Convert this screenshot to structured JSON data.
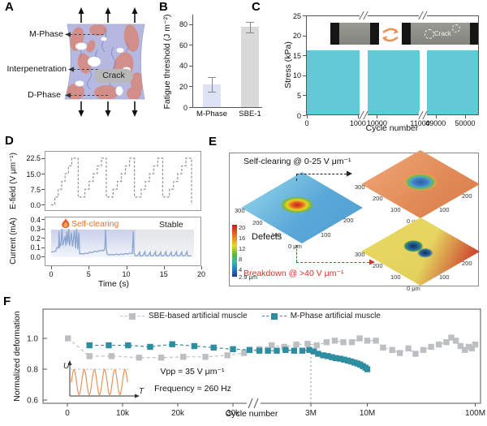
{
  "colors": {
    "cyan": "#62c9d6",
    "teal": "#2f8da2",
    "gray": "#bcc0c2",
    "orange": "#e8702f",
    "salmon": "#d28f8a",
    "lavender": "#b5b9e1",
    "red": "#d93025",
    "current_trace": "#8ba3cf",
    "efield_trace": "#8a8a7e"
  },
  "panel_a": {
    "label": "A",
    "m_phase": "M-Phase",
    "interpenetration": "Interpenetration",
    "d_phase": "D-Phase",
    "crack": "Crack"
  },
  "panel_b": {
    "label": "B",
    "ylabel": "Fatigue threshold (J m⁻²)",
    "chart_data": {
      "type": "bar",
      "categories": [
        "M-Phase",
        "SBE-1"
      ],
      "values": [
        22,
        77
      ],
      "errors": [
        7,
        5
      ],
      "yticks": [
        80,
        60,
        40,
        20,
        0
      ],
      "ylim": [
        0,
        89
      ],
      "bar_colors": [
        "#dde3f4",
        "#d9d9d9"
      ]
    }
  },
  "panel_c": {
    "label": "C",
    "ylabel": "Stress (kPa)",
    "xlabel": "Cycle number",
    "crack_label": "Crack",
    "chart_data": {
      "type": "area",
      "description": "cyclic tensile stress bands with two axis breaks",
      "amplitude_kpa": 16.3,
      "ylim": [
        0,
        25
      ],
      "yticks": [
        25,
        20,
        15,
        10,
        5,
        0
      ],
      "xticks": [
        {
          "label": "0",
          "f": 0.005
        },
        {
          "label": "1000",
          "f": 0.3
        },
        {
          "label": "10000",
          "f": 0.41
        },
        {
          "label": "11000",
          "f": 0.66
        },
        {
          "label": "49000",
          "f": 0.75
        },
        {
          "label": "50000",
          "f": 0.92
        }
      ],
      "segments": [
        [
          0.0,
          0.31
        ],
        [
          0.355,
          0.655
        ],
        [
          0.7,
          1.0
        ]
      ],
      "breaks_f": [
        0.333,
        0.678
      ]
    }
  },
  "panel_d": {
    "label": "D",
    "xlabel": "Time (s)",
    "xticks": [
      0,
      5,
      10,
      15,
      20
    ],
    "efield": {
      "ylabel": "E-field (V μm⁻¹)",
      "yticks": [
        "22.5",
        "15.0",
        "7.5",
        "0.0"
      ],
      "ylim": [
        -3,
        26
      ],
      "chart_data": {
        "type": "line",
        "style": "staircase-dashed",
        "steps": [
          [
            0,
            0
          ],
          [
            0.5,
            3.75
          ],
          [
            0.95,
            7.5
          ],
          [
            1.4,
            11.25
          ],
          [
            1.85,
            15
          ],
          [
            2.3,
            18.75
          ],
          [
            2.75,
            22.5
          ],
          [
            3.6,
            3.75
          ],
          [
            4.5,
            7.5
          ],
          [
            5.05,
            11.25
          ],
          [
            5.6,
            15
          ],
          [
            6.15,
            18.75
          ],
          [
            6.7,
            22.5
          ],
          [
            7.35,
            3.75
          ],
          [
            8.25,
            7.5
          ],
          [
            8.8,
            11.25
          ],
          [
            9.35,
            15
          ],
          [
            9.9,
            18.75
          ],
          [
            10.45,
            22.5
          ],
          [
            11.1,
            3.75
          ],
          [
            12.0,
            7.5
          ],
          [
            12.55,
            11.25
          ],
          [
            13.1,
            15
          ],
          [
            13.65,
            18.75
          ],
          [
            14.2,
            22.5
          ],
          [
            14.85,
            3.75
          ],
          [
            15.75,
            7.5
          ],
          [
            16.3,
            11.25
          ],
          [
            16.85,
            15
          ],
          [
            17.4,
            18.75
          ],
          [
            17.95,
            22.5
          ],
          [
            18.7,
            0
          ]
        ]
      }
    },
    "current": {
      "ylabel": "Current (mA)",
      "yticks": [
        "0.4",
        "0.3",
        "0.2",
        "0.1",
        "0.0"
      ],
      "ylim": [
        -0.1,
        0.43
      ],
      "self_clearing": "Self-clearing",
      "stable": "Stable",
      "transition_time_s": 11.2,
      "chart_data": {
        "type": "line",
        "series": [
          [
            0,
            0.05
          ],
          [
            0.3,
            0.055
          ],
          [
            0.6,
            0.06
          ],
          [
            0.8,
            0.1
          ],
          [
            1.0,
            0.095
          ],
          [
            1.05,
            0.27
          ],
          [
            1.15,
            0.11
          ],
          [
            1.3,
            0.13
          ],
          [
            1.45,
            0.3
          ],
          [
            1.55,
            0.12
          ],
          [
            1.7,
            0.17
          ],
          [
            1.85,
            0.22
          ],
          [
            1.95,
            0.12
          ],
          [
            2.1,
            0.27
          ],
          [
            2.2,
            0.14
          ],
          [
            2.35,
            0.3
          ],
          [
            2.45,
            0.12
          ],
          [
            2.6,
            0.19
          ],
          [
            2.7,
            0.26
          ],
          [
            2.85,
            0.11
          ],
          [
            2.95,
            0.17
          ],
          [
            3.1,
            0.28
          ],
          [
            3.25,
            0.09
          ],
          [
            3.4,
            0.3
          ],
          [
            3.55,
            0.08
          ],
          [
            3.7,
            0.26
          ],
          [
            3.8,
            0.03
          ],
          [
            4.0,
            0.035
          ],
          [
            4.3,
            0.03
          ],
          [
            4.6,
            0.04
          ],
          [
            4.9,
            0.035
          ],
          [
            5.2,
            0.05
          ],
          [
            5.5,
            0.045
          ],
          [
            5.8,
            0.06
          ],
          [
            6.1,
            0.055
          ],
          [
            6.4,
            0.065
          ],
          [
            6.7,
            0.07
          ],
          [
            7.0,
            0.065
          ],
          [
            7.15,
            0.09
          ],
          [
            7.25,
            0.29
          ],
          [
            7.35,
            0.08
          ],
          [
            7.5,
            0.025
          ],
          [
            7.8,
            0.02
          ],
          [
            8.1,
            0.025
          ],
          [
            8.4,
            0.02
          ],
          [
            8.7,
            0.03
          ],
          [
            9.0,
            0.02
          ],
          [
            9.3,
            0.03
          ],
          [
            9.6,
            0.025
          ],
          [
            9.9,
            0.035
          ],
          [
            10.2,
            0.03
          ],
          [
            10.5,
            0.04
          ],
          [
            10.8,
            0.035
          ],
          [
            10.95,
            0.27
          ],
          [
            11.05,
            0.04
          ],
          [
            11.2,
            0.012
          ],
          [
            11.5,
            0.01
          ],
          [
            11.8,
            0.05
          ],
          [
            11.85,
            0.01
          ],
          [
            12.2,
            0.01
          ],
          [
            12.5,
            0.055
          ],
          [
            12.55,
            0.012
          ],
          [
            12.9,
            0.01
          ],
          [
            13.2,
            0.05
          ],
          [
            13.25,
            0.012
          ],
          [
            13.6,
            0.01
          ],
          [
            13.9,
            0.055
          ],
          [
            13.95,
            0.012
          ],
          [
            14.3,
            0.01
          ],
          [
            14.6,
            0.05
          ],
          [
            14.65,
            0.012
          ],
          [
            15.0,
            0.01
          ],
          [
            15.3,
            0.055
          ],
          [
            15.35,
            0.012
          ],
          [
            15.7,
            0.01
          ],
          [
            16.0,
            0.05
          ],
          [
            16.05,
            0.012
          ],
          [
            16.4,
            0.01
          ],
          [
            16.7,
            0.055
          ],
          [
            16.75,
            0.012
          ],
          [
            17.1,
            0.01
          ],
          [
            17.4,
            0.05
          ],
          [
            17.45,
            0.012
          ],
          [
            17.8,
            0.01
          ],
          [
            18.1,
            0.055
          ],
          [
            18.15,
            0.012
          ],
          [
            18.5,
            0.01
          ],
          [
            18.7,
            0.01
          ]
        ]
      }
    }
  },
  "panel_e": {
    "label": "E",
    "title": "Self-clearing @ 0-25 V μm⁻¹",
    "defects": "Defects",
    "breakdown": "Breakdown @ >40 V μm⁻¹",
    "colorbar": {
      "ticks": [
        "20",
        "16",
        "12",
        "8",
        "4"
      ],
      "unit": "2.9 μm"
    },
    "surface_axes": {
      "left": [
        "300",
        "200",
        "100"
      ],
      "right": [
        "200",
        "100"
      ],
      "origin": "0 μm"
    }
  },
  "panel_f": {
    "label": "F",
    "ylabel": "Normalized deformation",
    "xlabel": "Cycle number",
    "yticks": [
      {
        "label": "1.0",
        "v": 1.0
      },
      {
        "label": "0.8",
        "v": 0.8
      },
      {
        "label": "0.6",
        "v": 0.6
      }
    ],
    "xticks": [
      {
        "label": "0",
        "c": 0
      },
      {
        "label": "10k",
        "c": 10000
      },
      {
        "label": "20k",
        "c": 20000
      },
      {
        "label": "30k",
        "c": 30000
      },
      {
        "label": "3M",
        "c": 3000000
      },
      {
        "label": "10M",
        "c": 10000000
      },
      {
        "label": "100M",
        "c": 100000000
      }
    ],
    "ref_cycle": 3000000,
    "inset": {
      "u": "U",
      "t": "T",
      "vpp": "Vpp = 35 V μm⁻¹",
      "freq": "Frequency = 260 Hz"
    },
    "chart_data": {
      "type": "scatter",
      "marker": "square",
      "dashed_line": true,
      "ylim": [
        0.6,
        1.12
      ],
      "series": [
        {
          "name": "SBE-based artificial muscle",
          "color": "#bcc0c2",
          "points": [
            [
              100,
              1.0
            ],
            [
              4000,
              0.885
            ],
            [
              8000,
              0.885
            ],
            [
              13000,
              0.875
            ],
            [
              17000,
              0.875
            ],
            [
              21000,
              0.88
            ],
            [
              25000,
              0.88
            ],
            [
              29000,
              0.89
            ],
            [
              32000,
              0.905
            ],
            [
              1000000,
              0.93
            ],
            [
              1300000,
              0.955
            ],
            [
              1700000,
              0.945
            ],
            [
              2200000,
              0.96
            ],
            [
              2800000,
              0.965
            ],
            [
              3400000,
              0.955
            ],
            [
              4200000,
              0.975
            ],
            [
              5000000,
              0.985
            ],
            [
              6000000,
              0.975
            ],
            [
              7200000,
              0.975
            ],
            [
              8500000,
              1.0
            ],
            [
              10000000,
              0.985
            ],
            [
              12000000,
              0.985
            ],
            [
              14000000,
              0.94
            ],
            [
              17000000,
              0.925
            ],
            [
              20000000,
              0.905
            ],
            [
              24000000,
              0.935
            ],
            [
              28000000,
              0.9
            ],
            [
              33000000,
              0.925
            ],
            [
              39000000,
              0.945
            ],
            [
              46000000,
              0.96
            ],
            [
              54000000,
              0.975
            ],
            [
              60000000,
              1.005
            ],
            [
              66000000,
              0.985
            ],
            [
              73000000,
              0.95
            ],
            [
              80000000,
              0.925
            ],
            [
              87000000,
              0.945
            ],
            [
              93000000,
              0.935
            ],
            [
              100000000,
              0.96
            ]
          ]
        },
        {
          "name": "M-Phase artificial muscle",
          "color": "#2f8da2",
          "points": [
            [
              4000,
              0.955
            ],
            [
              7500,
              0.955
            ],
            [
              11000,
              0.955
            ],
            [
              15000,
              0.945
            ],
            [
              19000,
              0.962
            ],
            [
              23000,
              0.95
            ],
            [
              26500,
              0.94
            ],
            [
              30000,
              0.93
            ],
            [
              33000,
              0.925
            ],
            [
              1000000,
              0.92
            ],
            [
              1200000,
              0.92
            ],
            [
              1450000,
              0.92
            ],
            [
              1750000,
              0.925
            ],
            [
              2100000,
              0.92
            ],
            [
              2500000,
              0.92
            ],
            [
              2900000,
              0.925
            ],
            [
              3200000,
              0.915
            ],
            [
              3500000,
              0.9
            ],
            [
              3900000,
              0.89
            ],
            [
              4300000,
              0.885
            ],
            [
              4700000,
              0.878
            ],
            [
              5100000,
              0.872
            ],
            [
              5600000,
              0.868
            ],
            [
              6100000,
              0.862
            ],
            [
              6600000,
              0.856
            ],
            [
              7100000,
              0.85
            ],
            [
              7600000,
              0.843
            ],
            [
              8100000,
              0.837
            ],
            [
              8600000,
              0.83
            ],
            [
              9100000,
              0.82
            ],
            [
              9600000,
              0.81
            ],
            [
              10000000,
              0.8
            ]
          ]
        }
      ]
    }
  }
}
